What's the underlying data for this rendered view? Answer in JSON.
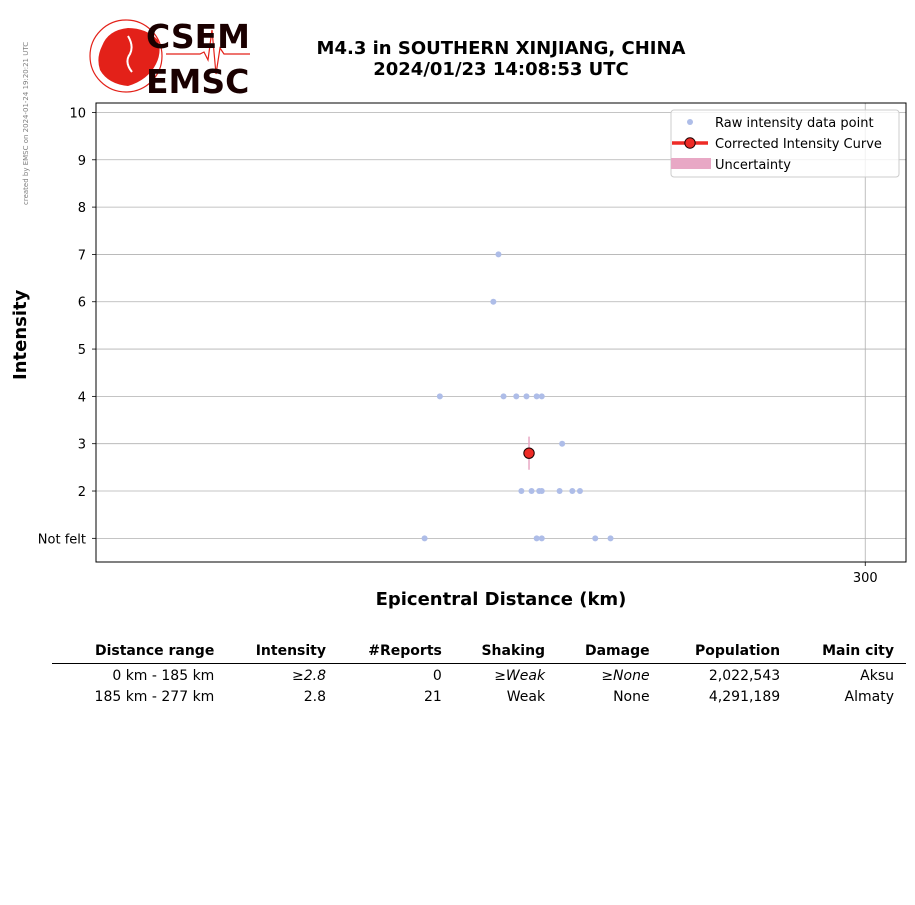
{
  "credit_note": "created by EMSC on 2024-01-24 19:20:21 UTC",
  "logo": {
    "text_top": "CSEM",
    "text_bottom": "EMSC",
    "colors": {
      "red": "#e32119",
      "dark": "#1a0000"
    }
  },
  "title": {
    "line1": "M4.3 in SOUTHERN XINJIANG, CHINA",
    "line2": "2024/01/23 14:08:53 UTC"
  },
  "chart_data": {
    "type": "scatter",
    "xlabel": "Epicentral Distance (km)",
    "ylabel": "Intensity",
    "x_ticks": [
      300
    ],
    "y_ticks": [
      "Not felt",
      "2",
      "3",
      "4",
      "5",
      "6",
      "7",
      "8",
      "9",
      "10"
    ],
    "xlim": [
      -2,
      316
    ],
    "ylim": [
      0.5,
      10.2
    ],
    "grid": true,
    "legend_position": "top-right",
    "legend": [
      "Raw intensity data point",
      "Corrected Intensity Curve",
      "Uncertainty"
    ],
    "series": [
      {
        "name": "Raw intensity data point",
        "color": "#aebde8",
        "points": [
          [
            156,
            7
          ],
          [
            154,
            6
          ],
          [
            133,
            4
          ],
          [
            158,
            4
          ],
          [
            163,
            4
          ],
          [
            167,
            4
          ],
          [
            171,
            4
          ],
          [
            173,
            4
          ],
          [
            181,
            3
          ],
          [
            165,
            2
          ],
          [
            169,
            2
          ],
          [
            172,
            2
          ],
          [
            173,
            2
          ],
          [
            180,
            2
          ],
          [
            185,
            2
          ],
          [
            188,
            2
          ],
          [
            127,
            1
          ],
          [
            171,
            1
          ],
          [
            173,
            1
          ],
          [
            194,
            1
          ],
          [
            200,
            1
          ]
        ]
      },
      {
        "name": "Corrected Intensity Curve",
        "color": "#ee2b26",
        "marker_edge": "#1a0000",
        "points": [
          [
            168,
            2.8
          ]
        ]
      },
      {
        "name": "Uncertainty",
        "color": "#e8a8c5",
        "ranges": [
          [
            168,
            2.45,
            3.15
          ]
        ]
      }
    ]
  },
  "table": {
    "headers": [
      "Distance range",
      "Intensity",
      "#Reports",
      "Shaking",
      "Damage",
      "Population",
      "Main city"
    ],
    "rows": [
      [
        "0 km -  185 km",
        "≥2.8",
        "0",
        "≥Weak",
        "≥None",
        "2,022,543",
        "Aksu"
      ],
      [
        "185 km -  277 km",
        "2.8",
        "21",
        "Weak",
        "None",
        "4,291,189",
        "Almaty"
      ]
    ]
  }
}
